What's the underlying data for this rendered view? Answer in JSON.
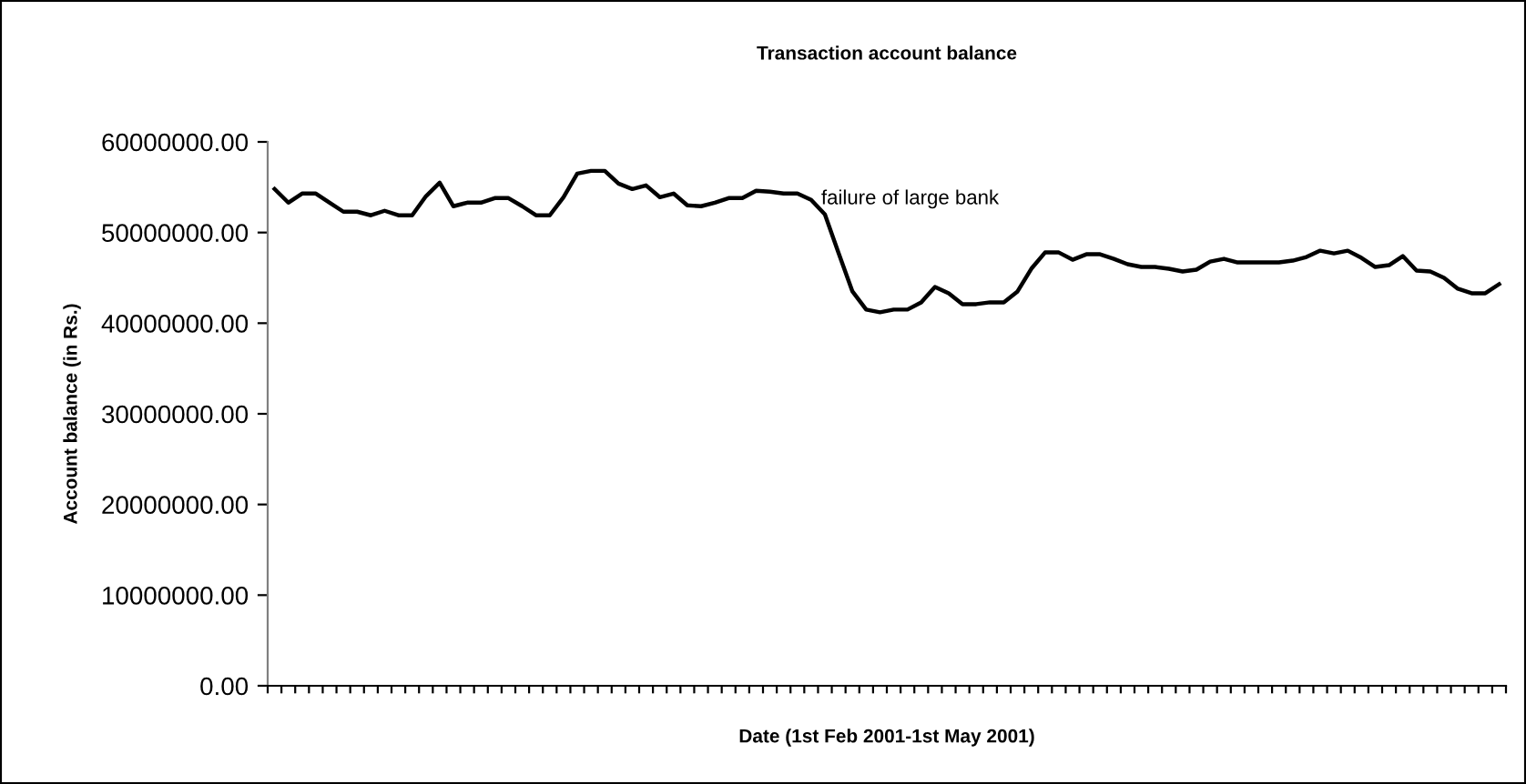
{
  "chart_data": {
    "type": "line",
    "title": "Transaction account balance",
    "xlabel": "Date (1st Feb 2001-1st May 2001)",
    "ylabel": "Account balance (in Rs.)",
    "annotations": [
      "failure of large bank"
    ],
    "categories": [
      null,
      null,
      null,
      null,
      null,
      null,
      null,
      null,
      null,
      null,
      null,
      null,
      null,
      null,
      null,
      null,
      null,
      null,
      null,
      null,
      null,
      null,
      null,
      null,
      null,
      null,
      null,
      null,
      null,
      null,
      null,
      null,
      null,
      null,
      null,
      null,
      null,
      null,
      null,
      null,
      null,
      null,
      null,
      null,
      null,
      null,
      null,
      null,
      null,
      null,
      null,
      null,
      null,
      null,
      null,
      null,
      null,
      null,
      null,
      null,
      null,
      null,
      null,
      null,
      null,
      null,
      null,
      null,
      null,
      null,
      null,
      null,
      null,
      null,
      null,
      null,
      null,
      null,
      null,
      null,
      null,
      null,
      null,
      null,
      null,
      null,
      null,
      null,
      null,
      null
    ],
    "series": [
      {
        "color": "#000000",
        "values": [
          54800000,
          53300000,
          54300000,
          54300000,
          53300000,
          52300000,
          52300000,
          51900000,
          52400000,
          51900000,
          51900000,
          54000000,
          55500000,
          52900000,
          53300000,
          53300000,
          53800000,
          53800000,
          52900000,
          51900000,
          51900000,
          53900000,
          56500000,
          56800000,
          56800000,
          55400000,
          54800000,
          55200000,
          53900000,
          54300000,
          53000000,
          52900000,
          53300000,
          53800000,
          53800000,
          54600000,
          54500000,
          54300000,
          54300000,
          53600000,
          52000000,
          47700000,
          43500000,
          41500000,
          41200000,
          41500000,
          41500000,
          42300000,
          44000000,
          43300000,
          42100000,
          42100000,
          42300000,
          42300000,
          43500000,
          46000000,
          47800000,
          47800000,
          47000000,
          47600000,
          47600000,
          47100000,
          46500000,
          46200000,
          46200000,
          46000000,
          45700000,
          45900000,
          46800000,
          47100000,
          46700000,
          46700000,
          46700000,
          46700000,
          46900000,
          47300000,
          48000000,
          47700000,
          48000000,
          47200000,
          46200000,
          46400000,
          47400000,
          45800000,
          45700000,
          45000000,
          43800000,
          43300000,
          43300000,
          44300000
        ]
      }
    ],
    "ylim": [
      0,
      60000000
    ],
    "yticks": [
      {
        "value": 0,
        "label": "0.00"
      },
      {
        "value": 10000000,
        "label": "10000000.00"
      },
      {
        "value": 20000000,
        "label": "20000000.00"
      },
      {
        "value": 30000000,
        "label": "30000000.00"
      },
      {
        "value": 40000000,
        "label": "40000000.00"
      },
      {
        "value": 50000000,
        "label": "50000000.00"
      },
      {
        "value": 60000000,
        "label": "60000000.00"
      }
    ],
    "tick_labels": "y",
    "grid": false,
    "legend": false,
    "marker": "none",
    "line_style": "solid"
  }
}
